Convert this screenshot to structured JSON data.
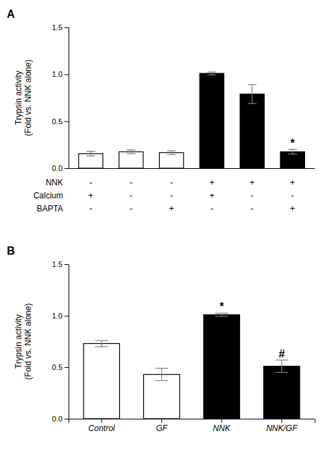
{
  "chart_data": [
    {
      "type": "bar",
      "title": "A",
      "categories": [
        null,
        null,
        null,
        null,
        null,
        null
      ],
      "values": [
        0.155,
        0.175,
        0.165,
        1.01,
        0.79,
        0.175
      ],
      "errors": [
        0.025,
        0.02,
        0.02,
        0.015,
        0.1,
        0.025
      ],
      "colors": [
        "white",
        "white",
        "white",
        "black",
        "black",
        "black"
      ],
      "y_label": "Trypsin activity\n(Fold vs. NNK alone)",
      "ylim": [
        0,
        1.5
      ],
      "yticks": [
        {
          "value": 0.0,
          "label": "0.0"
        },
        0.5,
        {
          "value": 1.0,
          "label": "1.0"
        },
        1.5
      ],
      "annotations": [
        {
          "text": "*",
          "index": 5
        }
      ],
      "table": {
        "row_labels": [
          "NNK",
          "Calcium",
          "BAPTA"
        ],
        "rows": [
          [
            "-",
            "-",
            "-",
            "+",
            "+",
            "+"
          ],
          [
            "+",
            "-",
            "-",
            "+",
            "-",
            "-"
          ],
          [
            "-",
            "-",
            "+",
            "-",
            "-",
            "+"
          ]
        ]
      }
    },
    {
      "type": "bar",
      "title": "B",
      "categories": [
        "Control",
        "GF",
        "NNK",
        "NNK/GF"
      ],
      "values": [
        0.73,
        0.43,
        1.01,
        0.51
      ],
      "errors": [
        0.03,
        0.06,
        0.015,
        0.06
      ],
      "colors": [
        "white",
        "white",
        "black",
        "black"
      ],
      "y_label": "Trypsin activity\n(Fold vs. NNK alone)",
      "ylim": [
        0,
        1.5
      ],
      "yticks": [
        {
          "value": 0.0,
          "label": "0.0"
        },
        0.5,
        {
          "value": 1.0,
          "label": "1.0"
        },
        1.5
      ],
      "annotations": [
        {
          "text": "*",
          "index": 2
        },
        {
          "text": "#",
          "index": 3
        }
      ]
    }
  ]
}
